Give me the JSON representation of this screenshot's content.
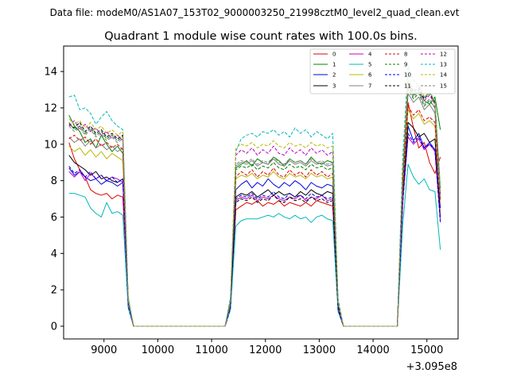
{
  "chart_data": {
    "type": "line",
    "suptitle": "Data file: modeM0/AS1A07_153T02_9000003250_21998cztM0_level2_quad_clean.evt",
    "title": "Quadrant 1 module wise count rates with 100.0s bins.",
    "xlabel": "",
    "ylabel": "",
    "x_offset_label": "+3.095e8",
    "xlim": [
      8250,
      15580
    ],
    "ylim": [
      -0.7,
      15.4
    ],
    "xticks": [
      9000,
      10000,
      11000,
      12000,
      13000,
      14000,
      15000
    ],
    "yticks": [
      0,
      2,
      4,
      6,
      8,
      10,
      12,
      14
    ],
    "grid": false,
    "legend_position": "upper-right",
    "segments": [
      {
        "start": 8350,
        "n": 11,
        "step": 100
      },
      {
        "start": 9450,
        "n": 19,
        "step": 100
      },
      {
        "start": 11350,
        "n": 20,
        "step": 100
      },
      {
        "start": 13350,
        "n": 12,
        "step": 100
      },
      {
        "start": 14550,
        "n": 8,
        "step": 100
      }
    ],
    "series": [
      {
        "name": "0",
        "color": "#e00000",
        "dash": "solid",
        "values": [
          10.1,
          9.2,
          8.6,
          8.2,
          7.5,
          7.3,
          7.2,
          7.3,
          7.0,
          7.2,
          7.1,
          1.3,
          0.0,
          0.0,
          0.0,
          0.0,
          0.0,
          0.0,
          0.0,
          0.0,
          0.0,
          0.0,
          0.0,
          0.0,
          0.0,
          0.0,
          0.0,
          0.0,
          0.0,
          0.0,
          1.2,
          6.4,
          6.6,
          6.8,
          6.7,
          6.9,
          6.6,
          6.8,
          6.7,
          6.9,
          6.6,
          6.8,
          6.7,
          6.6,
          6.8,
          6.6,
          6.9,
          6.8,
          6.7,
          6.6,
          1.0,
          0.0,
          0.0,
          0.0,
          0.0,
          0.0,
          0.0,
          0.0,
          0.0,
          0.0,
          0.0,
          0.0,
          6.6,
          12.3,
          10.9,
          9.8,
          10.1,
          9.0,
          8.4,
          9.3
        ]
      },
      {
        "name": "1",
        "color": "#008000",
        "dash": "solid",
        "values": [
          11.6,
          11.0,
          10.7,
          10.1,
          10.3,
          9.8,
          10.5,
          10.0,
          9.6,
          9.9,
          9.5,
          1.5,
          0.0,
          0.0,
          0.0,
          0.0,
          0.0,
          0.0,
          0.0,
          0.0,
          0.0,
          0.0,
          0.0,
          0.0,
          0.0,
          0.0,
          0.0,
          0.0,
          0.0,
          0.0,
          1.4,
          8.7,
          8.9,
          9.1,
          8.8,
          9.2,
          9.0,
          8.9,
          9.3,
          9.1,
          8.8,
          9.2,
          9.0,
          9.1,
          8.9,
          9.3,
          9.0,
          8.9,
          9.1,
          9.0,
          1.2,
          0.0,
          0.0,
          0.0,
          0.0,
          0.0,
          0.0,
          0.0,
          0.0,
          0.0,
          0.0,
          0.0,
          7.8,
          13.2,
          12.7,
          12.9,
          12.4,
          12.2,
          12.6,
          10.8
        ]
      },
      {
        "name": "2",
        "color": "#0000e0",
        "dash": "solid",
        "values": [
          8.7,
          8.3,
          8.5,
          8.2,
          8.0,
          8.1,
          7.8,
          8.0,
          7.9,
          7.7,
          7.9,
          1.1,
          0.0,
          0.0,
          0.0,
          0.0,
          0.0,
          0.0,
          0.0,
          0.0,
          0.0,
          0.0,
          0.0,
          0.0,
          0.0,
          0.0,
          0.0,
          0.0,
          0.0,
          0.0,
          1.0,
          7.5,
          7.8,
          8.0,
          7.6,
          7.9,
          7.7,
          8.1,
          7.8,
          7.6,
          7.9,
          7.7,
          8.0,
          7.8,
          7.5,
          7.9,
          7.7,
          7.6,
          7.8,
          7.7,
          0.9,
          0.0,
          0.0,
          0.0,
          0.0,
          0.0,
          0.0,
          0.0,
          0.0,
          0.0,
          0.0,
          0.0,
          7.0,
          11.0,
          10.2,
          10.6,
          9.8,
          10.1,
          9.7,
          6.5
        ]
      },
      {
        "name": "3",
        "color": "#000000",
        "dash": "solid",
        "values": [
          9.4,
          9.0,
          8.8,
          8.6,
          8.3,
          8.5,
          8.1,
          8.2,
          8.0,
          7.9,
          8.1,
          1.2,
          0.0,
          0.0,
          0.0,
          0.0,
          0.0,
          0.0,
          0.0,
          0.0,
          0.0,
          0.0,
          0.0,
          0.0,
          0.0,
          0.0,
          0.0,
          0.0,
          0.0,
          0.0,
          1.1,
          7.1,
          7.3,
          7.2,
          7.4,
          7.1,
          7.3,
          7.5,
          7.2,
          7.4,
          7.2,
          7.3,
          7.1,
          7.4,
          7.2,
          7.5,
          7.3,
          7.2,
          7.4,
          7.3,
          1.0,
          0.0,
          0.0,
          0.0,
          0.0,
          0.0,
          0.0,
          0.0,
          0.0,
          0.0,
          0.0,
          0.0,
          7.2,
          11.2,
          10.9,
          10.4,
          10.6,
          10.1,
          10.3,
          6.0
        ]
      },
      {
        "name": "4",
        "color": "#c000c0",
        "dash": "solid",
        "values": [
          8.5,
          8.2,
          8.5,
          8.0,
          8.4,
          8.1,
          8.3,
          8.0,
          8.2,
          8.1,
          7.9,
          1.1,
          0.0,
          0.0,
          0.0,
          0.0,
          0.0,
          0.0,
          0.0,
          0.0,
          0.0,
          0.0,
          0.0,
          0.0,
          0.0,
          0.0,
          0.0,
          0.0,
          0.0,
          0.0,
          1.0,
          6.9,
          7.1,
          7.0,
          7.2,
          6.9,
          7.1,
          7.0,
          7.2,
          7.0,
          6.9,
          7.1,
          7.0,
          7.2,
          6.9,
          7.1,
          7.0,
          7.2,
          6.9,
          7.0,
          0.9,
          0.0,
          0.0,
          0.0,
          0.0,
          0.0,
          0.0,
          0.0,
          0.0,
          0.0,
          0.0,
          0.0,
          6.8,
          10.4,
          10.0,
          10.3,
          9.7,
          10.0,
          9.6,
          5.8
        ]
      },
      {
        "name": "5",
        "color": "#00b8b8",
        "dash": "solid",
        "values": [
          7.3,
          7.3,
          7.2,
          7.1,
          6.5,
          6.2,
          6.0,
          6.8,
          6.2,
          6.3,
          6.1,
          1.0,
          0.0,
          0.0,
          0.0,
          0.0,
          0.0,
          0.0,
          0.0,
          0.0,
          0.0,
          0.0,
          0.0,
          0.0,
          0.0,
          0.0,
          0.0,
          0.0,
          0.0,
          0.0,
          0.9,
          5.5,
          5.8,
          5.9,
          5.9,
          5.9,
          6.0,
          6.1,
          6.0,
          6.2,
          6.0,
          5.9,
          6.1,
          5.9,
          6.0,
          5.7,
          6.0,
          6.1,
          5.9,
          5.8,
          0.8,
          0.0,
          0.0,
          0.0,
          0.0,
          0.0,
          0.0,
          0.0,
          0.0,
          0.0,
          0.0,
          0.0,
          5.5,
          8.9,
          8.2,
          7.8,
          8.1,
          7.5,
          7.4,
          4.2
        ]
      },
      {
        "name": "6",
        "color": "#b8b800",
        "dash": "solid",
        "values": [
          9.9,
          9.6,
          9.8,
          9.4,
          9.7,
          9.3,
          9.6,
          9.2,
          9.5,
          9.3,
          9.1,
          1.3,
          0.0,
          0.0,
          0.0,
          0.0,
          0.0,
          0.0,
          0.0,
          0.0,
          0.0,
          0.0,
          0.0,
          0.0,
          0.0,
          0.0,
          0.0,
          0.0,
          0.0,
          0.0,
          1.2,
          8.1,
          8.3,
          8.2,
          8.4,
          8.1,
          8.3,
          8.2,
          8.5,
          8.2,
          8.1,
          8.4,
          8.2,
          8.3,
          8.1,
          8.4,
          8.2,
          8.3,
          8.1,
          8.2,
          1.1,
          0.0,
          0.0,
          0.0,
          0.0,
          0.0,
          0.0,
          0.0,
          0.0,
          0.0,
          0.0,
          0.0,
          7.6,
          11.9,
          11.4,
          11.7,
          11.1,
          11.3,
          11.0,
          6.8
        ]
      },
      {
        "name": "7",
        "color": "#808080",
        "dash": "solid",
        "values": [
          10.4,
          10.1,
          10.3,
          9.9,
          10.2,
          9.8,
          10.0,
          9.7,
          9.9,
          9.6,
          9.8,
          1.3,
          0.0,
          0.0,
          0.0,
          0.0,
          0.0,
          0.0,
          0.0,
          0.0,
          0.0,
          0.0,
          0.0,
          0.0,
          0.0,
          0.0,
          0.0,
          0.0,
          0.0,
          0.0,
          1.3,
          8.8,
          9.0,
          8.9,
          9.1,
          8.8,
          9.0,
          8.9,
          9.2,
          8.9,
          8.8,
          9.1,
          8.9,
          9.0,
          8.8,
          9.1,
          8.9,
          9.0,
          8.8,
          8.9,
          1.2,
          0.0,
          0.0,
          0.0,
          0.0,
          0.0,
          0.0,
          0.0,
          0.0,
          0.0,
          0.0,
          0.0,
          8.0,
          12.8,
          12.3,
          12.6,
          11.9,
          12.2,
          11.7,
          7.0
        ]
      },
      {
        "name": "8",
        "color": "#e00000",
        "dash": "dashed",
        "values": [
          10.3,
          10.5,
          10.2,
          10.4,
          10.0,
          10.3,
          9.9,
          10.1,
          9.8,
          10.0,
          9.7,
          1.4,
          0.0,
          0.0,
          0.0,
          0.0,
          0.0,
          0.0,
          0.0,
          0.0,
          0.0,
          0.0,
          0.0,
          0.0,
          0.0,
          0.0,
          0.0,
          0.0,
          0.0,
          0.0,
          1.3,
          8.2,
          8.5,
          8.3,
          8.6,
          8.2,
          8.5,
          8.3,
          8.7,
          8.3,
          8.2,
          8.6,
          8.3,
          8.5,
          8.2,
          8.6,
          8.3,
          8.5,
          8.2,
          8.4,
          1.2,
          0.0,
          0.0,
          0.0,
          0.0,
          0.0,
          0.0,
          0.0,
          0.0,
          0.0,
          0.0,
          0.0,
          7.7,
          12.1,
          11.6,
          11.9,
          11.3,
          11.5,
          11.2,
          6.9
        ]
      },
      {
        "name": "9",
        "color": "#008000",
        "dash": "dashed",
        "values": [
          11.2,
          10.8,
          11.0,
          10.6,
          10.9,
          10.5,
          10.7,
          10.3,
          10.5,
          10.2,
          10.4,
          1.5,
          0.0,
          0.0,
          0.0,
          0.0,
          0.0,
          0.0,
          0.0,
          0.0,
          0.0,
          0.0,
          0.0,
          0.0,
          0.0,
          0.0,
          0.0,
          0.0,
          0.0,
          0.0,
          1.4,
          8.6,
          8.8,
          8.7,
          8.9,
          8.6,
          8.8,
          8.7,
          9.0,
          8.7,
          8.6,
          8.9,
          8.7,
          8.8,
          8.6,
          8.9,
          8.7,
          8.8,
          8.6,
          8.7,
          1.3,
          0.0,
          0.0,
          0.0,
          0.0,
          0.0,
          0.0,
          0.0,
          0.0,
          0.0,
          0.0,
          0.0,
          8.1,
          13.0,
          12.5,
          12.8,
          12.1,
          12.4,
          12.0,
          7.2
        ]
      },
      {
        "name": "10",
        "color": "#0000e0",
        "dash": "dashed",
        "values": [
          8.8,
          8.4,
          8.6,
          8.2,
          8.5,
          8.1,
          8.3,
          8.0,
          8.2,
          7.9,
          8.1,
          1.1,
          0.0,
          0.0,
          0.0,
          0.0,
          0.0,
          0.0,
          0.0,
          0.0,
          0.0,
          0.0,
          0.0,
          0.0,
          0.0,
          0.0,
          0.0,
          0.0,
          0.0,
          0.0,
          1.0,
          7.0,
          7.2,
          7.1,
          7.3,
          7.0,
          7.2,
          7.1,
          7.4,
          7.1,
          7.0,
          7.3,
          7.1,
          7.2,
          7.0,
          7.3,
          7.1,
          7.2,
          7.0,
          7.1,
          0.9,
          0.0,
          0.0,
          0.0,
          0.0,
          0.0,
          0.0,
          0.0,
          0.0,
          0.0,
          0.0,
          0.0,
          6.7,
          10.6,
          10.1,
          10.4,
          9.8,
          10.0,
          9.7,
          5.7
        ]
      },
      {
        "name": "11",
        "color": "#000000",
        "dash": "dashed",
        "values": [
          11.1,
          10.9,
          11.2,
          10.7,
          11.0,
          10.6,
          10.8,
          10.4,
          10.6,
          10.3,
          10.5,
          1.4,
          0.0,
          0.0,
          0.0,
          0.0,
          0.0,
          0.0,
          0.0,
          0.0,
          0.0,
          0.0,
          0.0,
          0.0,
          0.0,
          0.0,
          0.0,
          0.0,
          0.0,
          0.0,
          1.3,
          6.8,
          7.0,
          6.9,
          7.1,
          6.8,
          7.0,
          6.9,
          7.2,
          6.9,
          6.8,
          7.1,
          6.9,
          7.0,
          6.8,
          7.1,
          6.9,
          7.0,
          6.8,
          6.9,
          1.1,
          0.0,
          0.0,
          0.0,
          0.0,
          0.0,
          0.0,
          0.0,
          0.0,
          0.0,
          0.0,
          0.0,
          8.2,
          13.4,
          12.9,
          13.1,
          12.5,
          12.8,
          12.3,
          7.5
        ]
      },
      {
        "name": "12",
        "color": "#c000c0",
        "dash": "dashed",
        "values": [
          11.0,
          11.3,
          10.8,
          11.1,
          10.7,
          10.9,
          10.5,
          10.7,
          10.3,
          10.5,
          10.2,
          1.4,
          0.0,
          0.0,
          0.0,
          0.0,
          0.0,
          0.0,
          0.0,
          0.0,
          0.0,
          0.0,
          0.0,
          0.0,
          0.0,
          0.0,
          0.0,
          0.0,
          0.0,
          0.0,
          1.4,
          9.4,
          9.7,
          9.5,
          9.8,
          9.4,
          9.7,
          9.5,
          9.9,
          9.5,
          9.4,
          9.8,
          9.5,
          9.7,
          9.4,
          9.8,
          9.5,
          9.7,
          9.4,
          9.6,
          1.3,
          0.0,
          0.0,
          0.0,
          0.0,
          0.0,
          0.0,
          0.0,
          0.0,
          0.0,
          0.0,
          0.0,
          8.4,
          13.3,
          12.8,
          13.0,
          12.4,
          12.7,
          12.2,
          7.3
        ]
      },
      {
        "name": "13",
        "color": "#00b8b8",
        "dash": "dashed",
        "values": [
          12.6,
          12.7,
          11.9,
          12.0,
          11.7,
          11.1,
          11.5,
          11.8,
          11.3,
          11.0,
          10.8,
          1.6,
          0.0,
          0.0,
          0.0,
          0.0,
          0.0,
          0.0,
          0.0,
          0.0,
          0.0,
          0.0,
          0.0,
          0.0,
          0.0,
          0.0,
          0.0,
          0.0,
          0.0,
          0.0,
          1.6,
          9.6,
          10.3,
          10.5,
          10.6,
          10.4,
          10.7,
          10.6,
          10.8,
          10.5,
          10.7,
          10.4,
          10.9,
          10.6,
          10.8,
          10.4,
          10.7,
          10.5,
          10.3,
          10.6,
          1.5,
          0.0,
          0.0,
          0.0,
          0.0,
          0.0,
          0.0,
          0.0,
          0.0,
          0.0,
          0.0,
          0.0,
          9.2,
          14.3,
          13.5,
          13.2,
          12.6,
          12.8,
          12.5,
          7.6
        ]
      },
      {
        "name": "14",
        "color": "#b8b800",
        "dash": "dashed",
        "values": [
          11.4,
          11.1,
          11.3,
          10.9,
          11.2,
          10.8,
          11.0,
          10.6,
          10.8,
          10.5,
          10.7,
          1.5,
          0.0,
          0.0,
          0.0,
          0.0,
          0.0,
          0.0,
          0.0,
          0.0,
          0.0,
          0.0,
          0.0,
          0.0,
          0.0,
          0.0,
          0.0,
          0.0,
          0.0,
          0.0,
          1.4,
          9.8,
          10.0,
          9.9,
          10.1,
          9.8,
          10.0,
          9.9,
          10.2,
          9.9,
          9.8,
          10.1,
          9.9,
          10.0,
          9.8,
          10.1,
          9.9,
          10.0,
          9.8,
          9.9,
          1.3,
          0.0,
          0.0,
          0.0,
          0.0,
          0.0,
          0.0,
          0.0,
          0.0,
          0.0,
          0.0,
          0.0,
          8.6,
          13.6,
          13.0,
          13.3,
          12.6,
          12.9,
          12.4,
          7.4
        ]
      },
      {
        "name": "15",
        "color": "#808080",
        "dash": "dashed",
        "values": [
          11.0,
          10.7,
          10.9,
          10.5,
          10.8,
          10.4,
          10.6,
          10.2,
          10.4,
          10.1,
          10.3,
          1.4,
          0.0,
          0.0,
          0.0,
          0.0,
          0.0,
          0.0,
          0.0,
          0.0,
          0.0,
          0.0,
          0.0,
          0.0,
          0.0,
          0.0,
          0.0,
          0.0,
          0.0,
          0.0,
          1.4,
          8.9,
          9.1,
          9.0,
          9.2,
          8.9,
          9.1,
          9.0,
          9.3,
          9.0,
          8.9,
          9.2,
          9.0,
          9.1,
          8.9,
          9.2,
          9.0,
          9.1,
          8.9,
          9.0,
          1.3,
          0.0,
          0.0,
          0.0,
          0.0,
          0.0,
          0.0,
          0.0,
          0.0,
          0.0,
          0.0,
          0.0,
          8.3,
          13.1,
          12.6,
          12.9,
          12.2,
          12.5,
          12.0,
          7.1
        ]
      }
    ]
  }
}
